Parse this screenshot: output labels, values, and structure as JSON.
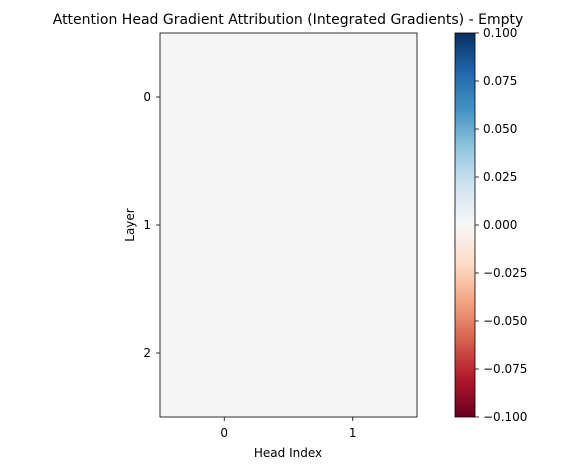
{
  "chart_data": {
    "type": "heatmap",
    "title": "Attention Head Gradient Attribution (Integrated Gradients) - Empty",
    "xlabel": "Head Index",
    "ylabel": "Layer",
    "x_categories": [
      "0",
      "1"
    ],
    "y_categories": [
      "0",
      "1",
      "2"
    ],
    "values": [
      [
        0,
        0
      ],
      [
        0,
        0
      ],
      [
        0,
        0
      ]
    ],
    "colormap": "RdBu",
    "color_range": [
      -0.1,
      0.1
    ],
    "fill_color": "#f5f5f5",
    "colorbar": {
      "ticks": [
        0.1,
        0.075,
        0.05,
        0.025,
        0.0,
        -0.025,
        -0.05,
        -0.075,
        -0.1
      ],
      "tick_labels": [
        "0.100",
        "0.075",
        "0.050",
        "0.025",
        "0.000",
        "−0.025",
        "−0.050",
        "−0.075",
        "−0.100"
      ],
      "gradient_colors": [
        "#053061",
        "#2166ac",
        "#4393c3",
        "#92c5de",
        "#d1e5f0",
        "#f7f7f7",
        "#fddbc7",
        "#f4a582",
        "#d6604d",
        "#b2182b",
        "#67001f"
      ]
    }
  }
}
